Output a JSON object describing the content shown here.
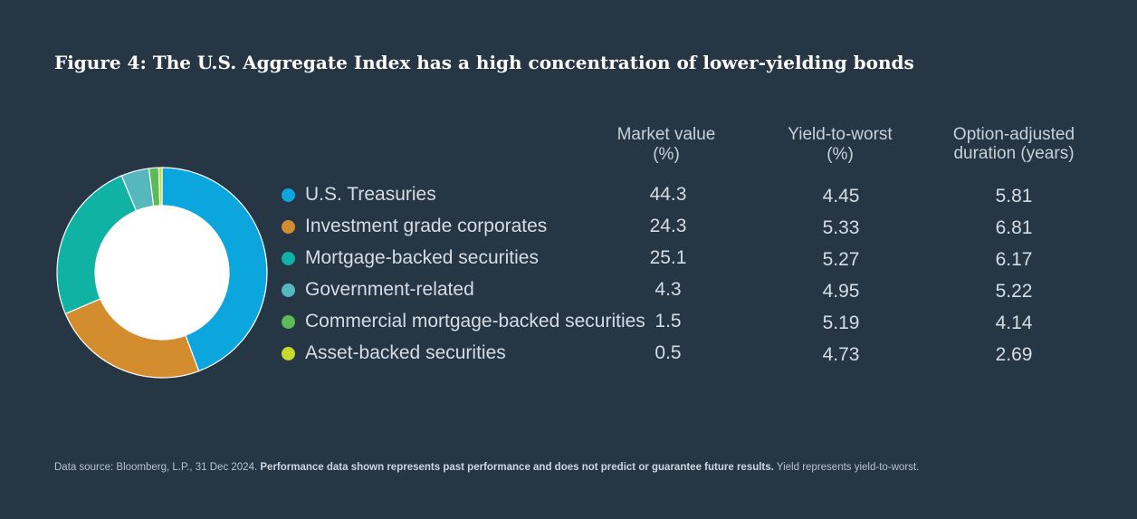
{
  "title": "Figure 4: The U.S. Aggregate Index has a high concentration of lower-yielding bonds",
  "columns": {
    "market_value": [
      "Market value",
      "(%)"
    ],
    "ytw": [
      "Yield-to-worst",
      "(%)"
    ],
    "oad": [
      "Option-adjusted",
      "duration (years)"
    ]
  },
  "footnote": {
    "source": "Data source: Bloomberg, L.P., 31 Dec 2024.",
    "bold": "Performance data shown represents past performance and does not predict or guarantee future results.",
    "note": "Yield represents yield-to-worst."
  },
  "chart_data": {
    "type": "pie",
    "style": "donut",
    "series": [
      {
        "name": "U.S. Treasuries",
        "market_value": "44.3",
        "ytw": "4.45",
        "oad": "5.81",
        "color": "#0aa6dd"
      },
      {
        "name": "Investment grade corporates",
        "market_value": "24.3",
        "ytw": "5.33",
        "oad": "6.81",
        "color": "#d38c2e"
      },
      {
        "name": "Mortgage-backed securities",
        "market_value": "25.1",
        "ytw": "5.27",
        "oad": "6.17",
        "color": "#10b3a3"
      },
      {
        "name": "Government-related",
        "market_value": "4.3",
        "ytw": "4.95",
        "oad": "5.22",
        "color": "#56b7bd"
      },
      {
        "name": "Commercial mortgage-backed securities",
        "market_value": "1.5",
        "ytw": "5.19",
        "oad": "4.14",
        "color": "#5cba57"
      },
      {
        "name": "Asset-backed securities",
        "market_value": "0.5",
        "ytw": "4.73",
        "oad": "2.69",
        "color": "#c7d92c"
      }
    ]
  }
}
